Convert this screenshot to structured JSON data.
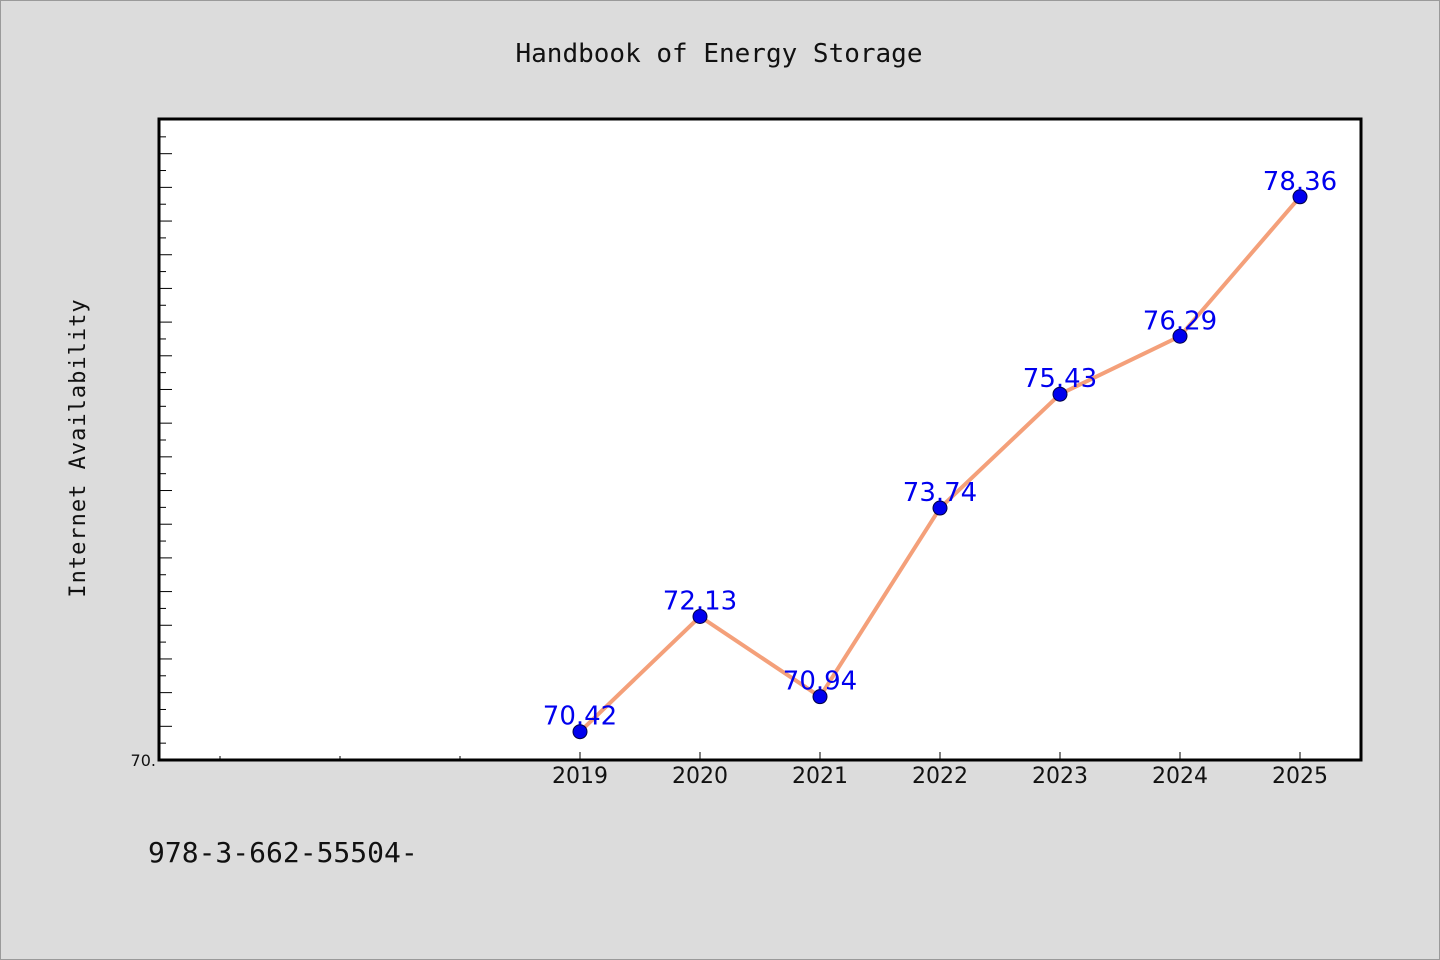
{
  "colors": {
    "background": "#dcdcdc",
    "plot_background": "#ffffff",
    "line": "#f4a07a",
    "marker": "#0000ee",
    "label": "#0000ee"
  },
  "footer": {
    "text": "978-3-662-55504-"
  },
  "chart_data": {
    "type": "line",
    "title": "Handbook of Energy Storage",
    "xlabel": "",
    "ylabel": "Internet Availability",
    "categories": [
      "2019",
      "2020",
      "2021",
      "2022",
      "2023",
      "2024",
      "2025"
    ],
    "series": [
      {
        "values": [
          70.42,
          72.13,
          70.94,
          73.74,
          75.43,
          76.29,
          78.36
        ]
      }
    ],
    "data_labels": [
      "70.42",
      "72.13",
      "70.94",
      "73.74",
      "75.43",
      "76.29",
      "78.36"
    ],
    "y_tick_label": "70.",
    "ylim": [
      70,
      79.5
    ],
    "x_range": [
      2015.5,
      2025.5
    ],
    "grid": false,
    "legend": "none"
  }
}
